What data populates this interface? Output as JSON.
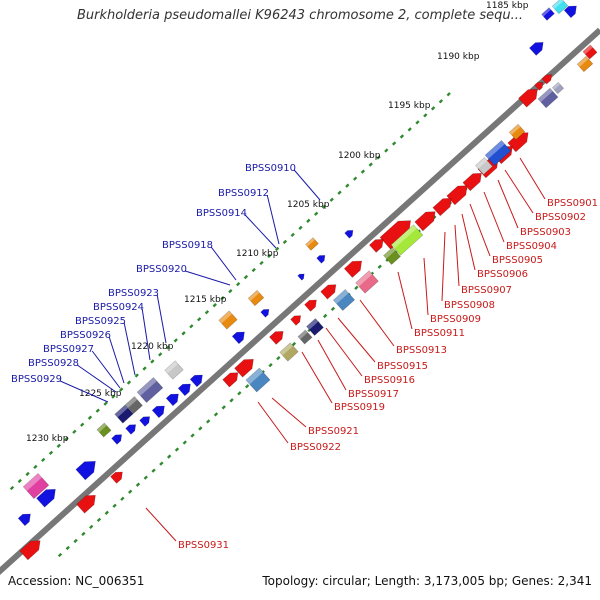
{
  "title": "Burkholderia pseudomallei K96243 chromosome 2, complete sequ...",
  "footer": {
    "accession": "Accession: NC_006351",
    "topology": "Topology: circular; Length: 3,173,005 bp; Genes: 2,341"
  },
  "colors": {
    "backbone": "#777777",
    "tick": "#2f8a2f",
    "forward_label": "#1a1aa8",
    "reverse_label": "#c81a1a",
    "forward_gene": "#1212e0",
    "reverse_gene": "#e81010"
  },
  "ruler": [
    "1185 kbp",
    "1190 kbp",
    "1195 kbp",
    "1200 kbp",
    "1205 kbp",
    "1210 kbp",
    "1215 kbp",
    "1220 kbp",
    "1225 kbp",
    "1230 kbp"
  ],
  "forward_labels": [
    "BPSS0910",
    "BPSS0912",
    "BPSS0914",
    "BPSS0918",
    "BPSS0920",
    "BPSS0923",
    "BPSS0924",
    "BPSS0925",
    "BPSS0926",
    "BPSS0927",
    "BPSS0928",
    "BPSS0929"
  ],
  "reverse_labels": [
    "BPSS0901",
    "BPSS0902",
    "BPSS0903",
    "BPSS0904",
    "BPSS0905",
    "BPSS0906",
    "BPSS0907",
    "BPSS0908",
    "BPSS0909",
    "BPSS0911",
    "BPSS0913",
    "BPSS0915",
    "BPSS0916",
    "BPSS0917",
    "BPSS0919",
    "BPSS0921",
    "BPSS0922",
    "BPSS0931"
  ]
}
